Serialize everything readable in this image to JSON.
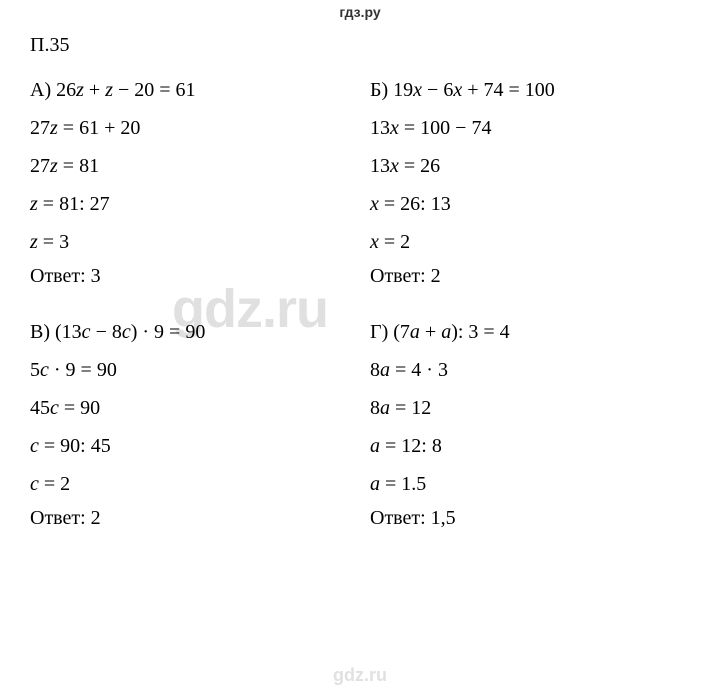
{
  "header": "гдз.ру",
  "problem": "П.35",
  "watermark": "gdz.ru",
  "sections": {
    "A": {
      "label": "А)",
      "lines": [
        {
          "t": "eq",
          "parts": [
            "26",
            {
              "v": "z"
            },
            " + ",
            {
              "v": "z"
            },
            " − 20 = 61"
          ]
        },
        {
          "t": "eq",
          "parts": [
            "27",
            {
              "v": "z"
            },
            " = 61 + 20"
          ]
        },
        {
          "t": "eq",
          "parts": [
            "27",
            {
              "v": "z"
            },
            " = 81"
          ]
        },
        {
          "t": "eq",
          "parts": [
            {
              "v": "z"
            },
            " = 81: 27"
          ]
        },
        {
          "t": "eq",
          "parts": [
            {
              "v": "z"
            },
            " = 3"
          ]
        }
      ],
      "answer": "Ответ: 3"
    },
    "B": {
      "label": "Б)",
      "lines": [
        {
          "t": "eq",
          "parts": [
            "19",
            {
              "v": "x"
            },
            " − 6",
            {
              "v": "x"
            },
            " + 74 = 100"
          ]
        },
        {
          "t": "eq",
          "parts": [
            "13",
            {
              "v": "x"
            },
            " = 100 − 74"
          ]
        },
        {
          "t": "eq",
          "parts": [
            "13",
            {
              "v": "x"
            },
            " = 26"
          ]
        },
        {
          "t": "eq",
          "parts": [
            {
              "v": "x"
            },
            " = 26: 13"
          ]
        },
        {
          "t": "eq",
          "parts": [
            {
              "v": "x"
            },
            " = 2"
          ]
        }
      ],
      "answer": "Ответ: 2"
    },
    "V": {
      "label": "В)",
      "lines": [
        {
          "t": "eq",
          "parts": [
            "(13",
            {
              "v": "c"
            },
            " − 8",
            {
              "v": "c"
            },
            ") · 9 = 90"
          ]
        },
        {
          "t": "eq",
          "parts": [
            "5",
            {
              "v": "c"
            },
            " · 9 = 90"
          ]
        },
        {
          "t": "eq",
          "parts": [
            "45",
            {
              "v": "c"
            },
            " = 90"
          ]
        },
        {
          "t": "eq",
          "parts": [
            {
              "v": "c"
            },
            " = 90: 45"
          ]
        },
        {
          "t": "eq",
          "parts": [
            {
              "v": "c"
            },
            " = 2"
          ]
        }
      ],
      "answer": "Ответ: 2"
    },
    "G": {
      "label": "Г)",
      "lines": [
        {
          "t": "eq",
          "parts": [
            "(7",
            {
              "v": "a"
            },
            " + ",
            {
              "v": "a"
            },
            "): 3 = 4"
          ]
        },
        {
          "t": "eq",
          "parts": [
            "8",
            {
              "v": "a"
            },
            " = 4 · 3"
          ]
        },
        {
          "t": "eq",
          "parts": [
            "8",
            {
              "v": "a"
            },
            " = 12"
          ]
        },
        {
          "t": "eq",
          "parts": [
            {
              "v": "a"
            },
            " = 12: 8"
          ]
        },
        {
          "t": "eq",
          "parts": [
            {
              "v": "a"
            },
            " = 1.5"
          ]
        }
      ],
      "answer": "Ответ: 1,5"
    }
  }
}
